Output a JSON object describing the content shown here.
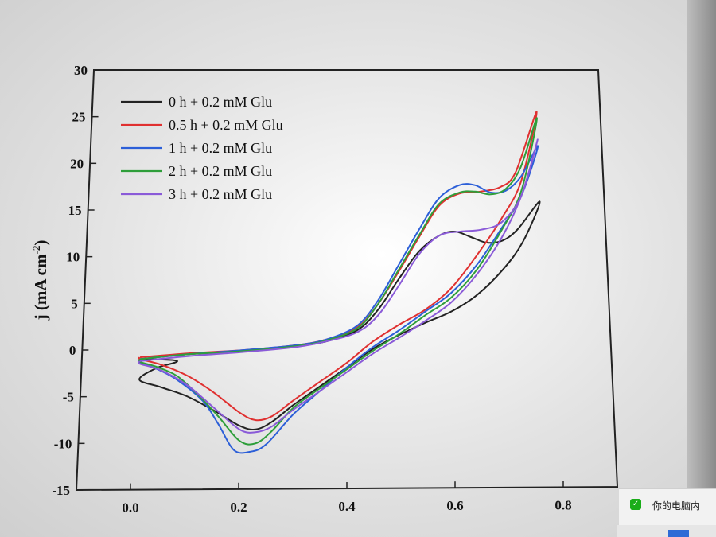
{
  "chart_data": {
    "type": "line",
    "ylabel": "j (mA cm",
    "ylabel_sup": "-2",
    "ylabel_close": ")",
    "xlim": [
      -0.1,
      0.9
    ],
    "ylim": [
      -15,
      30
    ],
    "x_ticks": [
      "0.0",
      "0.2",
      "0.4",
      "0.6",
      "0.8"
    ],
    "x_tick_values": [
      0.0,
      0.2,
      0.4,
      0.6,
      0.8
    ],
    "y_ticks": [
      "30",
      "25",
      "20",
      "15",
      "10",
      "5",
      "0",
      "-5",
      "-10",
      "-15"
    ],
    "y_tick_values": [
      30,
      25,
      20,
      15,
      10,
      5,
      0,
      -5,
      -10,
      -15
    ],
    "legend_position": "top-left",
    "series": [
      {
        "name": "0 h + 0.2 mM Glu",
        "color": "#222222",
        "points": [
          [
            0.01,
            -1.0
          ],
          [
            0.1,
            -0.5
          ],
          [
            0.2,
            -0.2
          ],
          [
            0.3,
            0.3
          ],
          [
            0.36,
            0.8
          ],
          [
            0.42,
            2.0
          ],
          [
            0.46,
            4.2
          ],
          [
            0.5,
            7.5
          ],
          [
            0.54,
            10.5
          ],
          [
            0.58,
            12.2
          ],
          [
            0.61,
            12.6
          ],
          [
            0.64,
            12.0
          ],
          [
            0.67,
            11.4
          ],
          [
            0.7,
            11.6
          ],
          [
            0.73,
            12.8
          ],
          [
            0.775,
            15.8
          ],
          [
            0.74,
            11.5
          ],
          [
            0.7,
            8.5
          ],
          [
            0.65,
            5.8
          ],
          [
            0.6,
            4.0
          ],
          [
            0.55,
            2.8
          ],
          [
            0.5,
            1.5
          ],
          [
            0.45,
            0.0
          ],
          [
            0.4,
            -2.0
          ],
          [
            0.35,
            -4.0
          ],
          [
            0.3,
            -6.0
          ],
          [
            0.26,
            -7.8
          ],
          [
            0.23,
            -8.6
          ],
          [
            0.2,
            -8.2
          ],
          [
            0.15,
            -6.5
          ],
          [
            0.1,
            -5.0
          ],
          [
            0.05,
            -4.0
          ],
          [
            0.01,
            -3.2
          ],
          [
            0.04,
            -2.0
          ],
          [
            0.08,
            -1.2
          ]
        ]
      },
      {
        "name": "0.5 h + 0.2 mM Glu",
        "color": "#e03030",
        "points": [
          [
            0.01,
            -0.8
          ],
          [
            0.1,
            -0.4
          ],
          [
            0.2,
            -0.1
          ],
          [
            0.3,
            0.4
          ],
          [
            0.36,
            1.0
          ],
          [
            0.42,
            2.3
          ],
          [
            0.46,
            4.8
          ],
          [
            0.5,
            8.3
          ],
          [
            0.54,
            12.0
          ],
          [
            0.58,
            15.4
          ],
          [
            0.62,
            16.7
          ],
          [
            0.66,
            16.9
          ],
          [
            0.7,
            17.4
          ],
          [
            0.73,
            19.0
          ],
          [
            0.775,
            25.5
          ],
          [
            0.74,
            18.0
          ],
          [
            0.7,
            14.0
          ],
          [
            0.65,
            10.0
          ],
          [
            0.6,
            6.5
          ],
          [
            0.55,
            4.2
          ],
          [
            0.5,
            2.6
          ],
          [
            0.45,
            0.8
          ],
          [
            0.4,
            -1.5
          ],
          [
            0.35,
            -3.5
          ],
          [
            0.3,
            -5.5
          ],
          [
            0.26,
            -7.2
          ],
          [
            0.23,
            -7.6
          ],
          [
            0.2,
            -6.8
          ],
          [
            0.15,
            -4.6
          ],
          [
            0.1,
            -2.8
          ],
          [
            0.05,
            -1.6
          ],
          [
            0.01,
            -1.0
          ]
        ]
      },
      {
        "name": "1 h + 0.2 mM Glu",
        "color": "#2c5fd8",
        "points": [
          [
            0.01,
            -1.0
          ],
          [
            0.1,
            -0.5
          ],
          [
            0.2,
            -0.1
          ],
          [
            0.3,
            0.4
          ],
          [
            0.36,
            1.0
          ],
          [
            0.42,
            2.5
          ],
          [
            0.46,
            5.2
          ],
          [
            0.5,
            9.0
          ],
          [
            0.54,
            12.8
          ],
          [
            0.58,
            16.2
          ],
          [
            0.62,
            17.6
          ],
          [
            0.65,
            17.6
          ],
          [
            0.68,
            16.8
          ],
          [
            0.71,
            17.0
          ],
          [
            0.74,
            18.5
          ],
          [
            0.775,
            21.8
          ],
          [
            0.74,
            16.5
          ],
          [
            0.7,
            13.0
          ],
          [
            0.65,
            9.0
          ],
          [
            0.6,
            6.0
          ],
          [
            0.55,
            4.0
          ],
          [
            0.5,
            2.0
          ],
          [
            0.45,
            0.2
          ],
          [
            0.4,
            -2.0
          ],
          [
            0.35,
            -4.5
          ],
          [
            0.3,
            -7.0
          ],
          [
            0.25,
            -10.2
          ],
          [
            0.22,
            -11.0
          ],
          [
            0.19,
            -10.8
          ],
          [
            0.16,
            -8.0
          ],
          [
            0.13,
            -5.5
          ],
          [
            0.08,
            -3.2
          ],
          [
            0.04,
            -2.0
          ],
          [
            0.01,
            -1.4
          ]
        ]
      },
      {
        "name": "2 h + 0.2 mM Glu",
        "color": "#2e9e3a",
        "points": [
          [
            0.01,
            -1.0
          ],
          [
            0.1,
            -0.5
          ],
          [
            0.2,
            -0.2
          ],
          [
            0.3,
            0.3
          ],
          [
            0.36,
            0.9
          ],
          [
            0.42,
            2.2
          ],
          [
            0.46,
            4.8
          ],
          [
            0.5,
            8.5
          ],
          [
            0.54,
            12.2
          ],
          [
            0.58,
            15.6
          ],
          [
            0.62,
            16.8
          ],
          [
            0.65,
            16.9
          ],
          [
            0.68,
            16.6
          ],
          [
            0.71,
            17.2
          ],
          [
            0.74,
            19.5
          ],
          [
            0.775,
            24.8
          ],
          [
            0.74,
            17.0
          ],
          [
            0.7,
            12.8
          ],
          [
            0.65,
            8.5
          ],
          [
            0.6,
            5.5
          ],
          [
            0.55,
            3.6
          ],
          [
            0.5,
            1.6
          ],
          [
            0.45,
            -0.2
          ],
          [
            0.4,
            -2.2
          ],
          [
            0.35,
            -4.2
          ],
          [
            0.3,
            -6.3
          ],
          [
            0.26,
            -8.8
          ],
          [
            0.23,
            -10.1
          ],
          [
            0.2,
            -9.8
          ],
          [
            0.16,
            -7.2
          ],
          [
            0.12,
            -4.8
          ],
          [
            0.08,
            -2.8
          ],
          [
            0.04,
            -1.8
          ],
          [
            0.01,
            -1.3
          ]
        ]
      },
      {
        "name": "3 h + 0.2 mM Glu",
        "color": "#8a5ad8",
        "points": [
          [
            0.01,
            -1.2
          ],
          [
            0.1,
            -0.7
          ],
          [
            0.2,
            -0.3
          ],
          [
            0.3,
            0.2
          ],
          [
            0.36,
            0.8
          ],
          [
            0.42,
            1.8
          ],
          [
            0.46,
            3.6
          ],
          [
            0.5,
            6.8
          ],
          [
            0.54,
            10.2
          ],
          [
            0.58,
            12.2
          ],
          [
            0.62,
            12.6
          ],
          [
            0.66,
            12.8
          ],
          [
            0.7,
            13.6
          ],
          [
            0.74,
            16.5
          ],
          [
            0.775,
            22.5
          ],
          [
            0.74,
            16.5
          ],
          [
            0.7,
            12.0
          ],
          [
            0.65,
            8.0
          ],
          [
            0.6,
            5.0
          ],
          [
            0.55,
            3.0
          ],
          [
            0.5,
            1.2
          ],
          [
            0.45,
            -0.5
          ],
          [
            0.4,
            -2.5
          ],
          [
            0.35,
            -4.5
          ],
          [
            0.3,
            -6.5
          ],
          [
            0.26,
            -8.3
          ],
          [
            0.23,
            -8.9
          ],
          [
            0.2,
            -8.6
          ],
          [
            0.15,
            -6.2
          ],
          [
            0.1,
            -3.8
          ],
          [
            0.05,
            -2.2
          ],
          [
            0.01,
            -1.5
          ]
        ]
      }
    ]
  },
  "notification": {
    "icon": "wechat-icon",
    "text": "你的电脑内"
  }
}
